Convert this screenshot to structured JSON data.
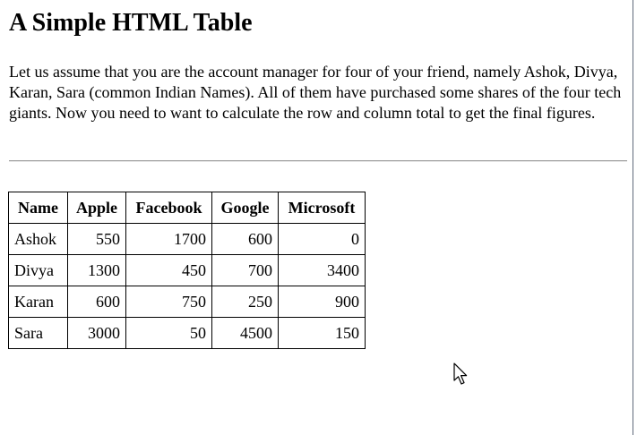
{
  "page": {
    "heading": "A Simple HTML Table",
    "intro": "Let us assume that you are the account manager for four of your friend, namely Ashok, Divya, Karan, Sara (common Indian Names). All of them have purchased some shares of the four tech giants. Now you need to want to calculate the row and column total to get the final figures."
  },
  "table": {
    "headers": [
      "Name",
      "Apple",
      "Facebook",
      "Google",
      "Microsoft"
    ],
    "rows": [
      {
        "name": "Ashok",
        "apple": "550",
        "facebook": "1700",
        "google": "600",
        "microsoft": "0"
      },
      {
        "name": "Divya",
        "apple": "1300",
        "facebook": "450",
        "google": "700",
        "microsoft": "3400"
      },
      {
        "name": "Karan",
        "apple": "600",
        "facebook": "750",
        "google": "250",
        "microsoft": "900"
      },
      {
        "name": "Sara",
        "apple": "3000",
        "facebook": "50",
        "google": "4500",
        "microsoft": "150"
      }
    ]
  },
  "cursor": {
    "icon": "arrow-cursor-icon"
  }
}
